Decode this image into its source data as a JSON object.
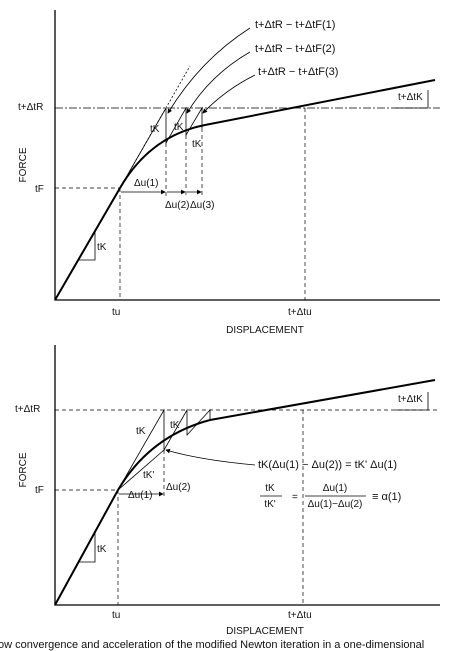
{
  "top_panel": {
    "y_axis_label": "FORCE",
    "x_axis_label": "DISPLACEMENT",
    "labels": {
      "res1": "t+ΔtR − t+ΔtF(1)",
      "res2": "t+ΔtR − t+ΔtF(2)",
      "res3": "t+ΔtR − t+ΔtF(3)",
      "load": "t+ΔtR",
      "tangent_end": "t+ΔtK",
      "force_t": "tF",
      "k1": "tK",
      "k2": "tK",
      "k3": "tK",
      "du1": "Δu(1)",
      "du2": "Δu(2)",
      "du3": "Δu(3)",
      "k0": "tK",
      "u_t": "tu",
      "u_end": "t+Δtu"
    }
  },
  "bottom_panel": {
    "y_axis_label": "FORCE",
    "x_axis_label": "DISPLACEMENT",
    "labels": {
      "load": "t+ΔtR",
      "tangent_end": "t+ΔtK",
      "k1": "tK",
      "k2": "tK",
      "k_secant": "tK'",
      "force_t": "tF",
      "du1": "Δu(1)",
      "du2": "Δu(2)",
      "k0": "tK",
      "u_t": "tu",
      "u_end": "t+Δtu"
    },
    "equation1": "tK(Δu(1) − Δu(2)) = tK' Δu(1)",
    "equation2": {
      "lhs_num": "tK",
      "lhs_den": "tK'",
      "eq": "=",
      "rhs_num": "Δu(1)",
      "rhs_den": "Δu(1)−Δu(2)",
      "result": "≡ α(1)"
    }
  },
  "caption": "ow convergence and acceleration of the modified Newton iteration in a one-dimensional"
}
